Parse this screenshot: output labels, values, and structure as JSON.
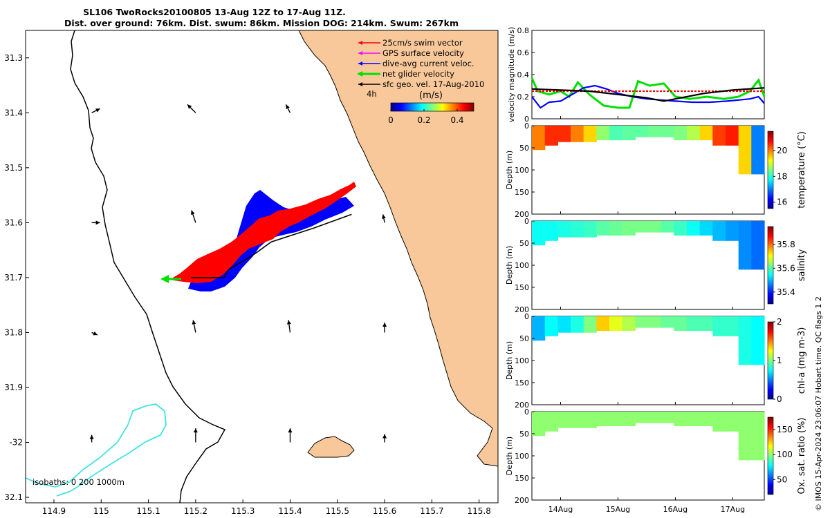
{
  "title": {
    "line1": "SL106 TwoRocks20100805 13-Aug 12Z to 17-Aug 11Z.",
    "line2": "Dist. over ground: 76km. Dist. swum: 86km. Mission DOG: 214km. Swum: 267km"
  },
  "credit": "© IMOS 15-Apr-2024 23:06:07 Hobart time. QC flags 1  2",
  "colors": {
    "land": "#f8c89a",
    "coast": "#000000",
    "isobath200": "#000000",
    "isobath1000": "#3fe3e3",
    "swim": "#ff0000",
    "gps": "#ff00ff",
    "dive_avg": "#0000ff",
    "net": "#00e000",
    "geo": "#000000"
  },
  "chart_data": [
    {
      "type": "map",
      "title": "SL106 TwoRocks20100805 13-Aug 12Z to 17-Aug 11Z.",
      "xlim": [
        114.84,
        115.84
      ],
      "ylim": [
        -32.11,
        -31.25
      ],
      "xticks": [
        114.9,
        115,
        115.1,
        115.2,
        115.3,
        115.4,
        115.5,
        115.6,
        115.7,
        115.8
      ],
      "xtick_labels": [
        "114.9",
        "115",
        "115.1",
        "115.2",
        "115.3",
        "115.4",
        "115.5",
        "115.6",
        "115.7",
        "115.8"
      ],
      "yticks": [
        -31.3,
        -31.4,
        -31.5,
        -31.6,
        -31.7,
        -31.8,
        -31.9,
        -32,
        -32.1
      ],
      "ytick_labels": [
        "31.3",
        "31.4",
        "31.5",
        "31.6",
        "31.7",
        "31.8",
        "31.9",
        "-32",
        "32.1"
      ],
      "legend": {
        "placement": "top-right",
        "entries": [
          {
            "label": "25cm/s swim vector",
            "color": "#ff0000"
          },
          {
            "label": "GPS surface velocity",
            "color": "#ff00ff"
          },
          {
            "label": "dive-avg current veloc.",
            "color": "#0000ff"
          },
          {
            "label": "net glider velocity",
            "color": "#00e000"
          },
          {
            "label": "sfc geo. vel. 17-Aug-2010",
            "color": "#000000"
          }
        ]
      },
      "duration_label": "4h",
      "colorbar": {
        "label": "(m/s)",
        "range": [
          0,
          0.5
        ],
        "ticks": [
          0,
          0.2,
          0.4
        ],
        "tick_labels": [
          "0",
          "0.2",
          "0.4"
        ]
      },
      "isobath_label": "isobaths: 0   200  1000m",
      "glider_track": [
        [
          115.53,
          -31.585
        ],
        [
          115.45,
          -31.61
        ],
        [
          115.36,
          -31.635
        ],
        [
          115.32,
          -31.66
        ],
        [
          115.27,
          -31.685
        ],
        [
          115.26,
          -31.7
        ],
        [
          115.22,
          -31.7
        ],
        [
          115.19,
          -31.7
        ]
      ],
      "geo_vectors": [
        {
          "lon": 115.2,
          "lat": -31.4,
          "u": -0.1,
          "v": 0.1
        },
        {
          "lon": 115.4,
          "lat": -31.4,
          "u": -0.05,
          "v": 0.1
        },
        {
          "lon": 114.98,
          "lat": -31.4,
          "u": 0.1,
          "v": 0.05
        },
        {
          "lon": 115.2,
          "lat": -31.6,
          "u": -0.05,
          "v": 0.15
        },
        {
          "lon": 114.98,
          "lat": -31.6,
          "u": 0.1,
          "v": 0.0
        },
        {
          "lon": 115.6,
          "lat": -31.6,
          "u": -0.02,
          "v": 0.1
        },
        {
          "lon": 115.2,
          "lat": -31.8,
          "u": -0.03,
          "v": 0.15
        },
        {
          "lon": 115.4,
          "lat": -31.8,
          "u": -0.02,
          "v": 0.15
        },
        {
          "lon": 115.6,
          "lat": -31.8,
          "u": 0.0,
          "v": 0.12
        },
        {
          "lon": 114.98,
          "lat": -31.8,
          "u": 0.07,
          "v": -0.03
        },
        {
          "lon": 115.2,
          "lat": -32.0,
          "u": 0.0,
          "v": 0.17
        },
        {
          "lon": 115.4,
          "lat": -32.0,
          "u": 0.0,
          "v": 0.17
        },
        {
          "lon": 115.6,
          "lat": -32.0,
          "u": 0.0,
          "v": 0.1
        },
        {
          "lon": 114.98,
          "lat": -32.0,
          "u": 0.0,
          "v": 0.09
        }
      ]
    },
    {
      "type": "line",
      "ylabel": "velocity magnitude (m/s)",
      "ylim": [
        0,
        0.8
      ],
      "yticks": [
        0,
        0.2,
        0.4,
        0.6,
        0.8
      ],
      "ytick_labels": [
        "0",
        "0.2",
        "0.4",
        "0.6",
        "0.8"
      ],
      "xlim": [
        13.5,
        17.55
      ],
      "series": [
        {
          "name": "net glider velocity",
          "color": "#00e000",
          "x": [
            13.5,
            13.6,
            13.8,
            14.0,
            14.15,
            14.3,
            14.5,
            14.75,
            15.0,
            15.2,
            15.35,
            15.55,
            15.8,
            16.0,
            16.25,
            16.55,
            16.85,
            17.1,
            17.3,
            17.45,
            17.55
          ],
          "y": [
            0.37,
            0.25,
            0.22,
            0.25,
            0.2,
            0.33,
            0.22,
            0.12,
            0.1,
            0.1,
            0.34,
            0.3,
            0.32,
            0.2,
            0.18,
            0.2,
            0.18,
            0.2,
            0.25,
            0.35,
            0.2
          ]
        },
        {
          "name": "dive-avg current veloc.",
          "color": "#0000ff",
          "x": [
            13.5,
            13.65,
            13.8,
            14.0,
            14.2,
            14.4,
            14.6,
            14.8,
            15.0,
            15.25,
            15.5,
            15.75,
            16.0,
            16.3,
            16.6,
            16.9,
            17.1,
            17.3,
            17.45,
            17.55
          ],
          "y": [
            0.2,
            0.1,
            0.15,
            0.16,
            0.22,
            0.28,
            0.3,
            0.27,
            0.23,
            0.2,
            0.18,
            0.17,
            0.16,
            0.15,
            0.15,
            0.16,
            0.17,
            0.18,
            0.2,
            0.14
          ]
        },
        {
          "name": "25cm/s swim vector",
          "color": "#ff0000",
          "x": [
            13.5,
            17.55
          ],
          "y": [
            0.25,
            0.25
          ]
        },
        {
          "name": "sfc geo. vel.",
          "color": "#000000",
          "x": [
            13.5,
            14.0,
            14.5,
            15.0,
            15.5,
            15.8,
            16.1,
            16.5,
            17.0,
            17.55
          ],
          "y": [
            0.27,
            0.26,
            0.25,
            0.22,
            0.19,
            0.16,
            0.19,
            0.23,
            0.26,
            0.28
          ]
        }
      ]
    },
    {
      "type": "heatmap",
      "variable": "temperature",
      "ylabel": "Depth (m)",
      "colorbar_label": "temperature (°C)",
      "color_ticks": [
        16,
        18,
        20
      ],
      "color_tick_labels": [
        "16",
        "18",
        "20"
      ],
      "clim": [
        15.5,
        21.5
      ],
      "ylim": [
        0,
        200
      ],
      "yticks": [
        0,
        50,
        100,
        150,
        200
      ],
      "ytick_labels": [
        "0",
        "50",
        "100",
        "150",
        "200"
      ],
      "section_values": [
        20,
        20.5,
        20.5,
        20,
        19.5,
        18.6,
        18.2,
        18.3,
        18.3,
        18.4,
        18.4,
        18.5,
        18.8,
        19.5,
        20.4,
        20.6,
        19.5,
        17.0
      ]
    },
    {
      "type": "heatmap",
      "variable": "salinity",
      "ylabel": "Depth (m)",
      "colorbar_label": "salinity",
      "color_ticks": [
        35.4,
        35.6,
        35.8
      ],
      "color_tick_labels": [
        "35.4",
        "35.6",
        "35.8"
      ],
      "clim": [
        35.3,
        35.95
      ],
      "ylim": [
        0,
        200
      ],
      "yticks": [
        0,
        50,
        100,
        150,
        200
      ],
      "ytick_labels": [
        "0",
        "50",
        "100",
        "150",
        "200"
      ],
      "section_values": [
        35.55,
        35.55,
        35.56,
        35.57,
        35.58,
        35.6,
        35.61,
        35.62,
        35.62,
        35.62,
        35.6,
        35.58,
        35.55,
        35.52,
        35.5,
        35.48,
        35.47,
        35.45
      ]
    },
    {
      "type": "heatmap",
      "variable": "chl-a",
      "ylabel": "Depth (m)",
      "colorbar_label": "chl-a (mg m-3)",
      "color_ticks": [
        0,
        1,
        2
      ],
      "color_tick_labels": [
        "0",
        "1",
        "2"
      ],
      "clim": [
        0,
        2
      ],
      "ylim": [
        0,
        200
      ],
      "yticks": [
        0,
        50,
        100,
        150,
        200
      ],
      "ytick_labels": [
        "0",
        "50",
        "100",
        "150",
        "200"
      ],
      "section_values": [
        0.6,
        0.75,
        0.7,
        0.8,
        1.0,
        1.35,
        1.2,
        1.1,
        1.0,
        1.0,
        0.95,
        0.95,
        0.9,
        0.9,
        0.85,
        0.85,
        0.8,
        0.75
      ]
    },
    {
      "type": "heatmap",
      "variable": "oxygen saturation",
      "ylabel": "Depth (m)",
      "colorbar_label": "Ox. sat. ratio (%)",
      "color_ticks": [
        50,
        100,
        150
      ],
      "color_tick_labels": [
        "50",
        "100",
        "150"
      ],
      "clim": [
        20,
        175
      ],
      "ylim": [
        0,
        200
      ],
      "yticks": [
        0,
        50,
        100,
        150,
        200
      ],
      "ytick_labels": [
        "0",
        "50",
        "100",
        "150",
        "200"
      ],
      "section_values": [
        100,
        100,
        100,
        100,
        100,
        100,
        100,
        100,
        100,
        100,
        100,
        100,
        100,
        100,
        100,
        100,
        100,
        100
      ]
    },
    {
      "type": "axis",
      "xlim": [
        13.5,
        17.55
      ],
      "xticks": [
        14,
        15,
        16,
        17
      ],
      "xtick_labels": [
        "14Aug",
        "15Aug",
        "16Aug",
        "17Aug"
      ]
    }
  ]
}
